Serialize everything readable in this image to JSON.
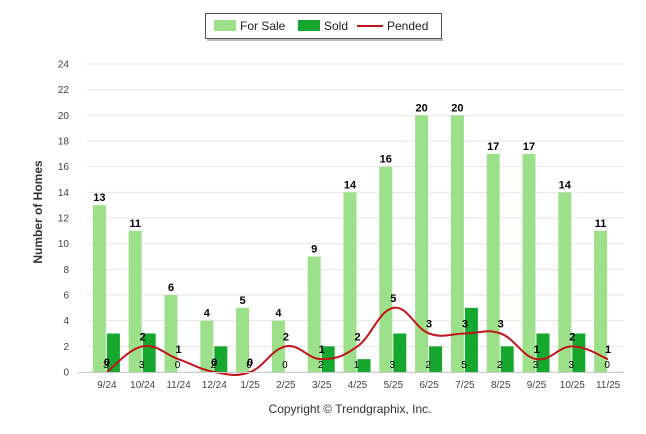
{
  "chart_data": {
    "type": "bar",
    "title": "",
    "xlabel": "",
    "ylabel": "Number of Homes",
    "ylim": [
      0,
      24
    ],
    "yticks": [
      0,
      2,
      4,
      6,
      8,
      10,
      12,
      14,
      16,
      18,
      20,
      22,
      24
    ],
    "grid": true,
    "legend_position": "top-center",
    "categories": [
      "9/24",
      "10/24",
      "11/24",
      "12/24",
      "1/25",
      "2/25",
      "3/25",
      "4/25",
      "5/25",
      "6/25",
      "7/25",
      "8/25",
      "9/25",
      "10/25",
      "11/25"
    ],
    "series": [
      {
        "name": "For Sale",
        "kind": "bar",
        "color": "#9de08a",
        "values": [
          13,
          11,
          6,
          4,
          5,
          4,
          9,
          14,
          16,
          20,
          20,
          17,
          17,
          14,
          11
        ]
      },
      {
        "name": "Sold",
        "kind": "bar",
        "color": "#16a72e",
        "values": [
          3,
          3,
          0,
          2,
          0,
          0,
          2,
          1,
          3,
          2,
          5,
          2,
          3,
          3,
          0
        ]
      },
      {
        "name": "Pended",
        "kind": "line",
        "color": "#c0141b",
        "values": [
          0,
          2,
          1,
          0,
          0,
          2,
          1,
          2,
          5,
          3,
          3,
          3,
          1,
          2,
          1
        ]
      }
    ],
    "footer": "Copyright © Trendgraphix, Inc."
  }
}
